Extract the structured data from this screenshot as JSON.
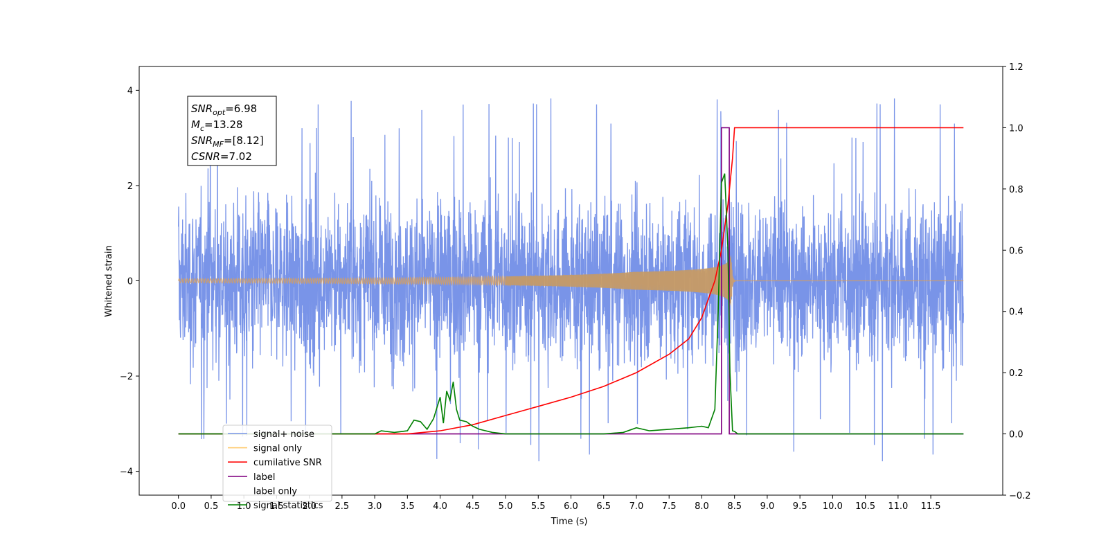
{
  "chart_data": {
    "type": "line",
    "xlabel": "Time (s)",
    "ylabel": "Whitened strain",
    "xlim": [
      -0.6,
      12.6
    ],
    "ylim": [
      -4.5,
      4.5
    ],
    "y2lim": [
      -0.2,
      1.2
    ],
    "x_ticks": [
      "0.0",
      "0.5",
      "1.0",
      "1.5",
      "2.0",
      "2.5",
      "3.0",
      "3.5",
      "4.0",
      "4.5",
      "5.0",
      "5.5",
      "6.0",
      "6.5",
      "7.0",
      "7.5",
      "8.0",
      "8.5",
      "9.0",
      "9.5",
      "10.0",
      "10.5",
      "11.0",
      "11.5"
    ],
    "y_ticks": [
      "4",
      "2",
      "0",
      "−2",
      "−4"
    ],
    "y2_ticks": [
      "1.2",
      "1.0",
      "0.8",
      "0.6",
      "0.4",
      "0.2",
      "0.0",
      "−0.2"
    ],
    "grid": false,
    "legend_placement": "lower-left",
    "annotation": {
      "lines": [
        {
          "base": "SNR",
          "sub": "opt",
          "value": "=6.98"
        },
        {
          "base": "M",
          "sub": "c",
          "value": "=13.28"
        },
        {
          "base": "SNR",
          "sub": "MF",
          "value": "=[8.12]"
        },
        {
          "base": "CSNR",
          "sub": "",
          "value": "=7.02"
        }
      ]
    },
    "series": [
      {
        "name": "signal+ noise",
        "color": "#7994e8",
        "axis": "left",
        "kind": "noise",
        "x_range": [
          0.0,
          12.0
        ],
        "approx_amplitude": 2.4,
        "max_peak": 4.12,
        "min_trough": -4.07
      },
      {
        "name": "signal only",
        "color": "#f5b455",
        "axis": "left",
        "kind": "chirp",
        "x_range": [
          0.0,
          8.5
        ],
        "merger_time": 8.45,
        "peak_amplitude": 0.55
      },
      {
        "name": "cumilative SNR",
        "color": "#ff0000",
        "axis": "right",
        "x": [
          0.0,
          3.5,
          4.0,
          4.5,
          5.0,
          5.5,
          6.0,
          6.5,
          7.0,
          7.5,
          7.8,
          8.0,
          8.2,
          8.3,
          8.4,
          8.47,
          8.5,
          12.0
        ],
        "y": [
          0.0,
          0.0,
          0.01,
          0.03,
          0.06,
          0.09,
          0.12,
          0.155,
          0.2,
          0.26,
          0.31,
          0.38,
          0.5,
          0.6,
          0.75,
          0.9,
          1.0,
          1.0
        ]
      },
      {
        "name": "label",
        "color": "#800080",
        "axis": "right",
        "x": [
          0.0,
          8.3,
          8.3,
          8.42,
          8.42,
          8.45,
          8.45,
          12.0
        ],
        "y": [
          0.0,
          0.0,
          1.0,
          1.0,
          0.0,
          0.0,
          0.0,
          0.0
        ]
      },
      {
        "name": "label only",
        "color": "#ffffff",
        "axis": "right",
        "x": [],
        "y": []
      },
      {
        "name": "signal statistics",
        "color": "#008000",
        "axis": "right",
        "x": [
          0.0,
          2.5,
          3.0,
          3.1,
          3.3,
          3.5,
          3.6,
          3.7,
          3.8,
          3.9,
          4.0,
          4.05,
          4.1,
          4.15,
          4.2,
          4.25,
          4.3,
          4.4,
          4.5,
          4.6,
          4.8,
          5.0,
          5.5,
          6.0,
          6.5,
          6.8,
          7.0,
          7.2,
          7.5,
          7.8,
          8.0,
          8.1,
          8.2,
          8.25,
          8.3,
          8.35,
          8.4,
          8.43,
          8.47,
          8.5,
          8.55,
          12.0
        ],
        "y": [
          0.0,
          0.0,
          0.0,
          0.01,
          0.005,
          0.01,
          0.045,
          0.04,
          0.015,
          0.05,
          0.12,
          0.035,
          0.14,
          0.11,
          0.17,
          0.08,
          0.045,
          0.04,
          0.025,
          0.015,
          0.005,
          0.0,
          0.0,
          0.0,
          0.0,
          0.005,
          0.02,
          0.01,
          0.015,
          0.02,
          0.025,
          0.02,
          0.08,
          0.4,
          0.82,
          0.85,
          0.6,
          0.2,
          0.01,
          0.008,
          0.0,
          0.0
        ]
      }
    ]
  }
}
